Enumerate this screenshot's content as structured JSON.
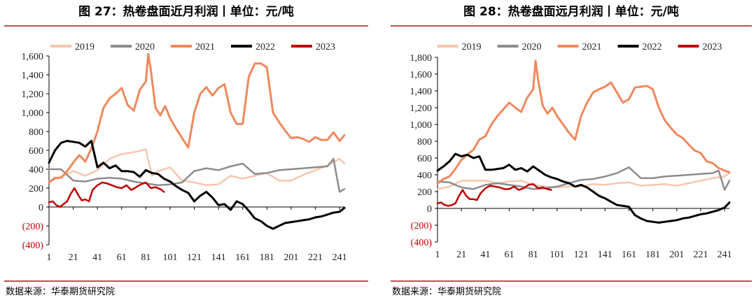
{
  "charts": [
    {
      "title": "图 27：热卷盘面近月利润丨单位：元/吨",
      "source": "数据来源：华泰期货研究院",
      "legend": [
        "2019",
        "2020",
        "2021",
        "2022",
        "2023"
      ],
      "yticks": [
        "1,600",
        "1,400",
        "1,200",
        "1,000",
        "800",
        "600",
        "400",
        "200",
        "0",
        "(200)",
        "(400)"
      ],
      "xticks": [
        "1",
        "21",
        "41",
        "61",
        "81",
        "101",
        "121",
        "141",
        "161",
        "181",
        "201",
        "221",
        "241"
      ]
    },
    {
      "title": "图 28：热卷盘面远月利润丨单位：元/吨",
      "source": "数据来源：华泰期货研究院",
      "legend": [
        "2019",
        "2020",
        "2021",
        "2022",
        "2023"
      ],
      "yticks": [
        "1,800",
        "1,600",
        "1,400",
        "1,200",
        "1,000",
        "800",
        "600",
        "400",
        "200",
        "0",
        "(200)",
        "(400)"
      ],
      "xticks": [
        "1",
        "21",
        "41",
        "61",
        "81",
        "101",
        "121",
        "141",
        "161",
        "181",
        "201",
        "221",
        "241"
      ]
    }
  ],
  "chart_data": [
    {
      "type": "line",
      "title": "图 27：热卷盘面近月利润丨单位：元/吨",
      "xlabel": "",
      "ylabel": "",
      "ylim": [
        -400,
        1600
      ],
      "xlim": [
        1,
        245
      ],
      "negative_tick_color": "#c00000",
      "series": [
        {
          "name": "2019",
          "color": "#f7c6ae",
          "x": [
            1,
            11,
            21,
            31,
            41,
            51,
            61,
            71,
            81,
            86,
            91,
            101,
            111,
            121,
            131,
            141,
            151,
            161,
            171,
            181,
            191,
            201,
            211,
            221,
            231,
            241,
            245
          ],
          "values": [
            270,
            320,
            380,
            330,
            390,
            510,
            560,
            580,
            610,
            330,
            380,
            420,
            280,
            260,
            230,
            240,
            330,
            300,
            330,
            360,
            280,
            280,
            340,
            390,
            440,
            510,
            460
          ]
        },
        {
          "name": "2020",
          "color": "#8c8c8c",
          "x": [
            1,
            11,
            21,
            31,
            41,
            51,
            61,
            71,
            81,
            91,
            101,
            111,
            121,
            131,
            141,
            151,
            161,
            171,
            181,
            191,
            201,
            211,
            221,
            231,
            236,
            241,
            245
          ],
          "values": [
            400,
            400,
            280,
            270,
            300,
            310,
            300,
            270,
            250,
            230,
            240,
            260,
            380,
            410,
            390,
            430,
            460,
            350,
            360,
            390,
            400,
            410,
            420,
            430,
            510,
            160,
            190
          ]
        },
        {
          "name": "2021",
          "color": "#f0885e",
          "x": [
            1,
            6,
            11,
            16,
            21,
            26,
            31,
            36,
            41,
            46,
            51,
            56,
            61,
            66,
            71,
            76,
            81,
            83,
            85,
            89,
            93,
            97,
            101,
            106,
            111,
            116,
            121,
            126,
            131,
            136,
            141,
            146,
            151,
            156,
            161,
            166,
            171,
            176,
            181,
            186,
            191,
            196,
            201,
            206,
            211,
            216,
            221,
            226,
            231,
            236,
            241,
            245
          ],
          "values": [
            260,
            310,
            310,
            380,
            470,
            550,
            480,
            620,
            800,
            1050,
            1150,
            1200,
            1260,
            1080,
            1020,
            1240,
            1330,
            1620,
            1460,
            1050,
            970,
            1070,
            940,
            830,
            730,
            630,
            1000,
            1200,
            1270,
            1180,
            1260,
            1300,
            1000,
            880,
            880,
            1380,
            1520,
            1520,
            1480,
            1000,
            900,
            810,
            730,
            740,
            720,
            690,
            740,
            710,
            710,
            790,
            700,
            760
          ]
        },
        {
          "name": "2022",
          "color": "#000000",
          "x": [
            1,
            6,
            11,
            16,
            21,
            26,
            31,
            36,
            41,
            46,
            51,
            56,
            61,
            66,
            71,
            76,
            81,
            86,
            91,
            96,
            101,
            106,
            111,
            116,
            121,
            126,
            131,
            136,
            141,
            146,
            151,
            156,
            161,
            166,
            171,
            176,
            181,
            186,
            191,
            196,
            201,
            206,
            211,
            216,
            221,
            226,
            231,
            236,
            241,
            245
          ],
          "values": [
            470,
            600,
            680,
            700,
            690,
            680,
            640,
            700,
            420,
            470,
            410,
            440,
            380,
            380,
            370,
            320,
            390,
            360,
            350,
            300,
            270,
            220,
            180,
            150,
            60,
            120,
            160,
            100,
            20,
            30,
            -30,
            60,
            30,
            -40,
            -120,
            -150,
            -200,
            -230,
            -200,
            -170,
            -160,
            -150,
            -140,
            -130,
            -110,
            -100,
            -80,
            -60,
            -50,
            -10
          ]
        },
        {
          "name": "2023",
          "color": "#c00000",
          "x": [
            1,
            4,
            7,
            10,
            13,
            16,
            19,
            22,
            25,
            28,
            31,
            34,
            37,
            41,
            45,
            49,
            53,
            57,
            61,
            65,
            69,
            73,
            77,
            81,
            85,
            89,
            93,
            96
          ],
          "values": [
            50,
            60,
            20,
            0,
            30,
            60,
            140,
            200,
            130,
            70,
            80,
            60,
            180,
            230,
            260,
            250,
            230,
            210,
            200,
            230,
            180,
            210,
            240,
            260,
            200,
            210,
            190,
            160
          ]
        }
      ]
    },
    {
      "type": "line",
      "title": "图 28：热卷盘面远月利润丨单位：元/吨",
      "xlabel": "",
      "ylabel": "",
      "ylim": [
        -400,
        1800
      ],
      "xlim": [
        1,
        245
      ],
      "negative_tick_color": "#c00000",
      "series": [
        {
          "name": "2019",
          "color": "#f7c6ae",
          "x": [
            1,
            11,
            21,
            31,
            41,
            51,
            61,
            71,
            81,
            91,
            101,
            111,
            121,
            131,
            141,
            151,
            161,
            171,
            181,
            191,
            201,
            211,
            221,
            231,
            241,
            245
          ],
          "values": [
            230,
            260,
            330,
            330,
            330,
            300,
            320,
            330,
            280,
            260,
            250,
            260,
            260,
            290,
            280,
            300,
            310,
            270,
            280,
            290,
            270,
            300,
            330,
            360,
            380,
            420
          ]
        },
        {
          "name": "2020",
          "color": "#8c8c8c",
          "x": [
            1,
            11,
            21,
            31,
            41,
            51,
            61,
            71,
            81,
            91,
            101,
            111,
            121,
            131,
            141,
            151,
            161,
            171,
            181,
            191,
            201,
            211,
            221,
            231,
            236,
            241,
            245
          ],
          "values": [
            320,
            310,
            250,
            230,
            280,
            300,
            280,
            260,
            230,
            240,
            260,
            300,
            340,
            350,
            380,
            420,
            490,
            360,
            360,
            380,
            390,
            400,
            410,
            420,
            450,
            220,
            330
          ]
        },
        {
          "name": "2021",
          "color": "#f0885e",
          "x": [
            1,
            6,
            11,
            16,
            21,
            26,
            31,
            36,
            41,
            46,
            51,
            56,
            61,
            66,
            71,
            76,
            81,
            83,
            85,
            89,
            93,
            97,
            101,
            106,
            111,
            116,
            121,
            126,
            131,
            136,
            141,
            146,
            151,
            156,
            161,
            166,
            171,
            176,
            181,
            186,
            191,
            196,
            201,
            206,
            211,
            216,
            221,
            226,
            231,
            236,
            241,
            245
          ],
          "values": [
            300,
            350,
            380,
            470,
            580,
            640,
            700,
            820,
            860,
            1000,
            1100,
            1180,
            1260,
            1200,
            1150,
            1320,
            1420,
            1760,
            1540,
            1220,
            1130,
            1200,
            1100,
            1000,
            900,
            820,
            1100,
            1260,
            1380,
            1420,
            1450,
            1500,
            1380,
            1260,
            1300,
            1440,
            1450,
            1460,
            1420,
            1200,
            1050,
            960,
            880,
            840,
            760,
            690,
            660,
            560,
            540,
            480,
            450,
            430
          ]
        },
        {
          "name": "2022",
          "color": "#000000",
          "x": [
            1,
            6,
            11,
            16,
            21,
            26,
            31,
            36,
            41,
            46,
            51,
            56,
            61,
            66,
            71,
            76,
            81,
            86,
            91,
            96,
            101,
            106,
            111,
            116,
            121,
            126,
            131,
            136,
            141,
            146,
            151,
            156,
            161,
            166,
            171,
            176,
            181,
            186,
            191,
            196,
            201,
            206,
            211,
            216,
            221,
            226,
            231,
            236,
            241,
            245
          ],
          "values": [
            450,
            500,
            560,
            650,
            620,
            640,
            600,
            620,
            460,
            460,
            470,
            480,
            520,
            460,
            480,
            440,
            500,
            450,
            400,
            370,
            350,
            320,
            300,
            260,
            280,
            250,
            200,
            150,
            120,
            80,
            40,
            30,
            20,
            -80,
            -120,
            -150,
            -160,
            -170,
            -160,
            -150,
            -140,
            -120,
            -110,
            -90,
            -70,
            -60,
            -40,
            -20,
            10,
            70
          ]
        },
        {
          "name": "2023",
          "color": "#c00000",
          "x": [
            1,
            4,
            7,
            10,
            13,
            16,
            19,
            22,
            25,
            28,
            31,
            34,
            37,
            41,
            45,
            49,
            53,
            57,
            61,
            65,
            69,
            73,
            77,
            81,
            85,
            89,
            93,
            96
          ],
          "values": [
            60,
            70,
            40,
            30,
            40,
            60,
            150,
            220,
            150,
            110,
            110,
            100,
            180,
            240,
            270,
            260,
            250,
            230,
            230,
            260,
            220,
            240,
            280,
            290,
            240,
            250,
            230,
            220
          ]
        }
      ]
    }
  ]
}
